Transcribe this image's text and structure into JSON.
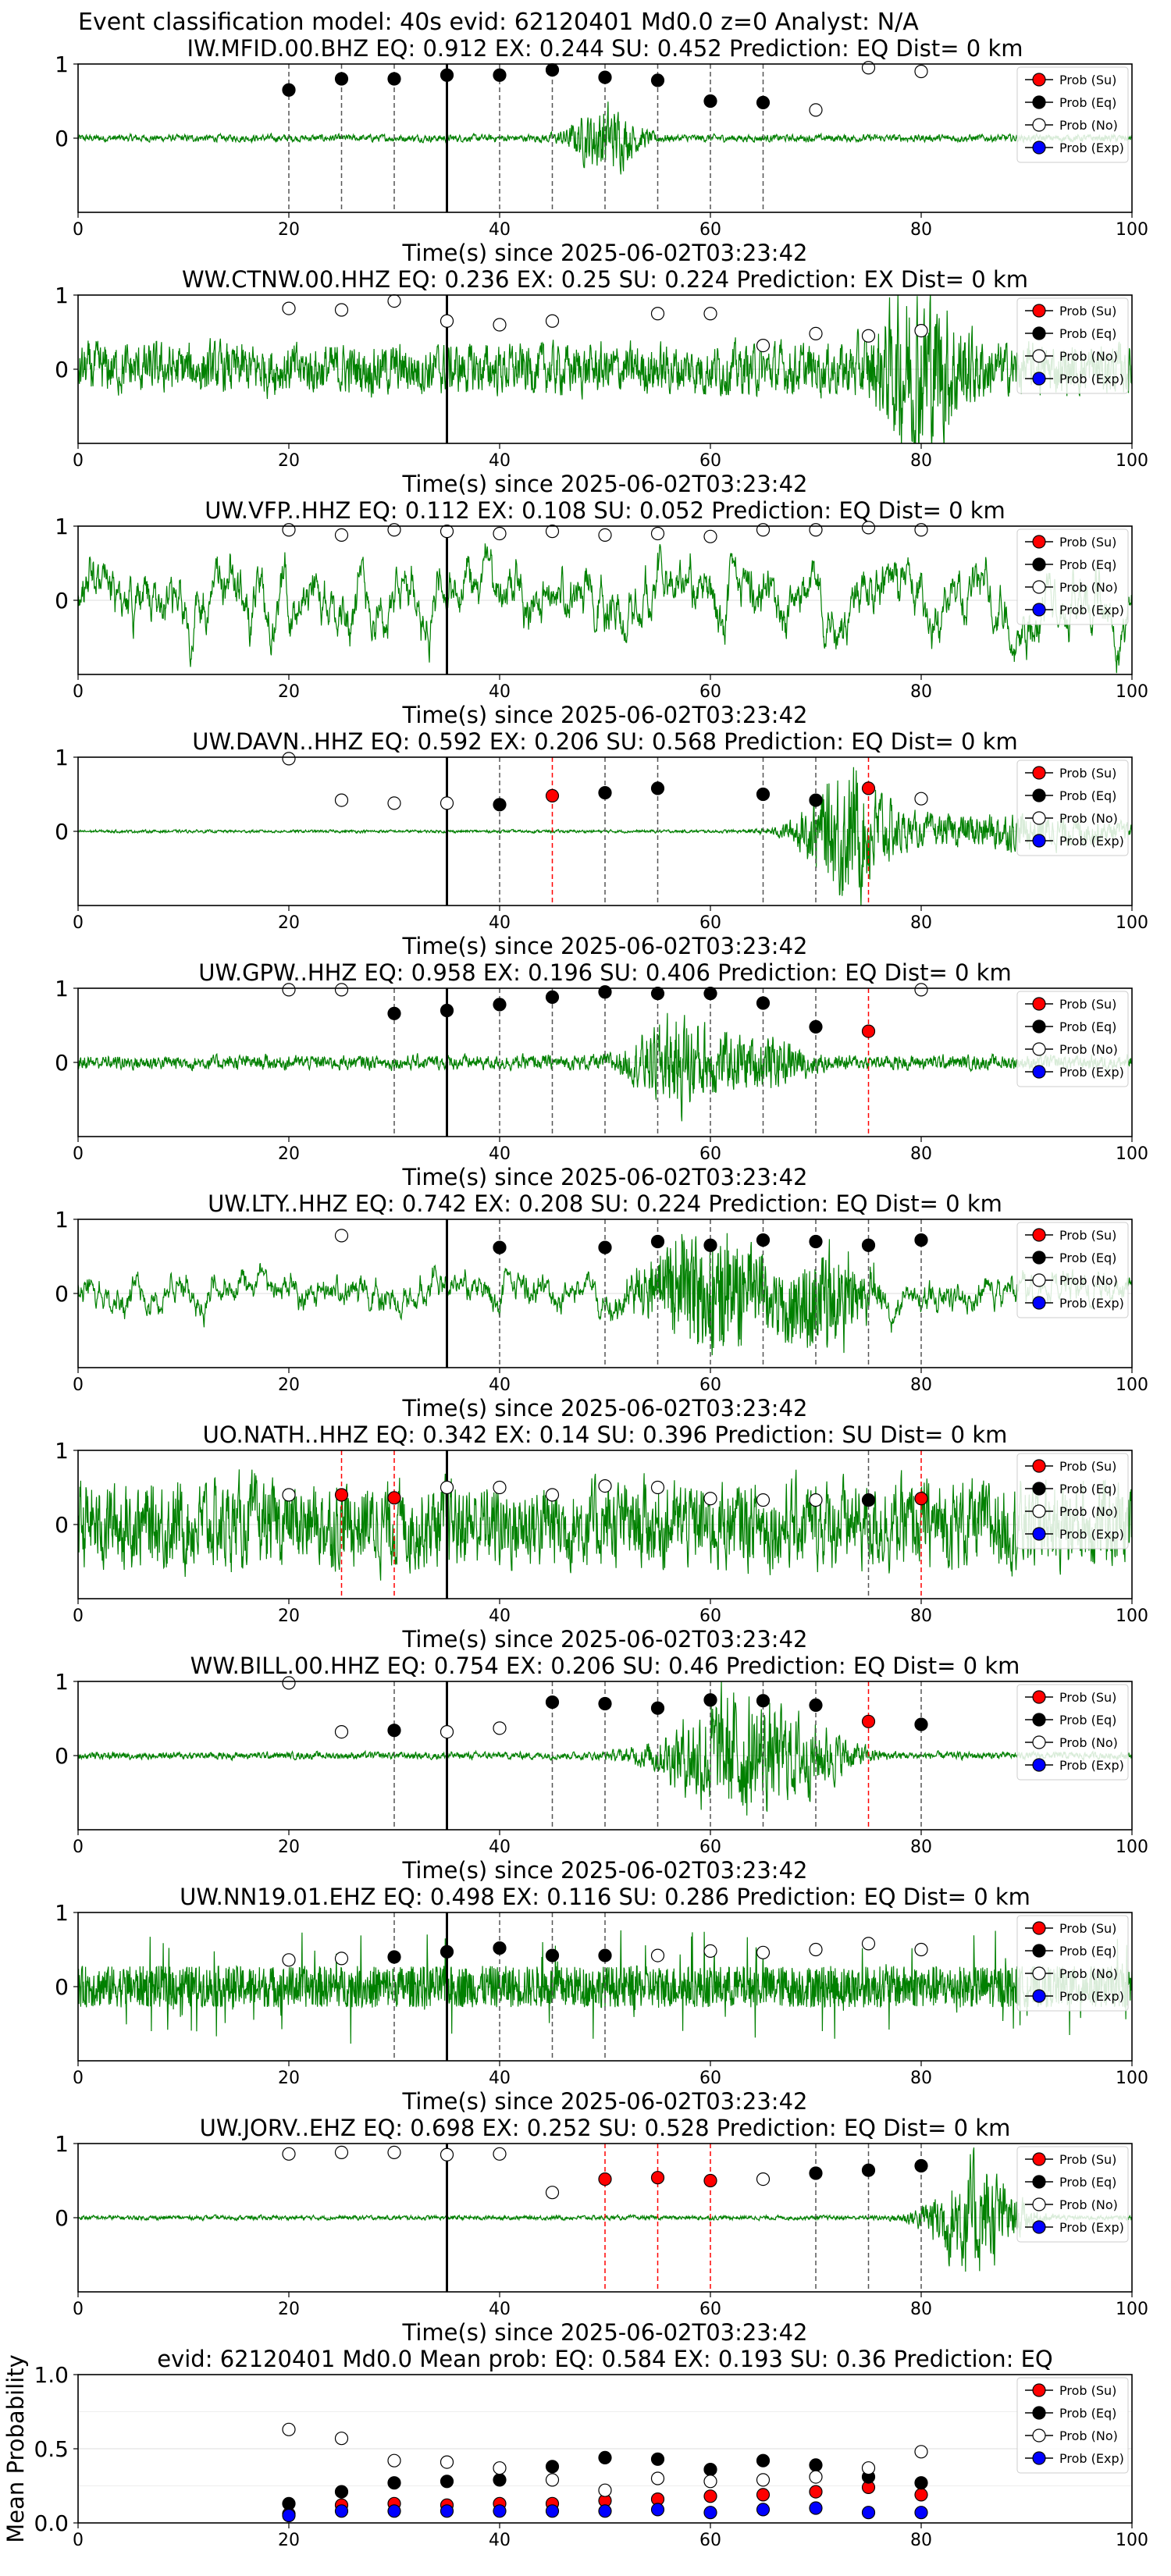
{
  "figure": {
    "suptitle": "Event classification model: 40s evid: 62120401 Md0.0 z=0 Analyst: N/A"
  },
  "legend_labels": [
    "Prob (Su)",
    "Prob (Eq)",
    "Prob (No)",
    "Prob (Exp)"
  ],
  "colors": {
    "trace": "#008000",
    "su": "#ff0000",
    "eq": "#000000",
    "no": "#ffffff",
    "exp": "#0000ff",
    "vline": "#555555",
    "vline_su": "#ff0000"
  },
  "chart_data": [
    {
      "type": "line",
      "station": "IW.MFID.00.BHZ",
      "title": "IW.MFID.00.BHZ   EQ: 0.912   EX: 0.244   SU: 0.452   Prediction: EQ    Dist= 0 km",
      "xlabel": "Time(s) since 2025-06-02T03:23:42",
      "xlim": [
        0,
        100
      ],
      "ylim": [
        -1,
        1
      ],
      "xticks": [
        "0",
        "20",
        "40",
        "60",
        "80",
        "100"
      ],
      "yticks": [
        "1",
        "0"
      ],
      "arrival_line": 35,
      "noise_profile": {
        "base": 0.05,
        "bursts": [
          [
            50,
            3,
            0.45
          ]
        ]
      },
      "points": [
        [
          20,
          0.65,
          "eq"
        ],
        [
          25,
          0.8,
          "eq"
        ],
        [
          30,
          0.8,
          "eq"
        ],
        [
          35,
          0.85,
          "eq"
        ],
        [
          40,
          0.85,
          "eq"
        ],
        [
          45,
          0.92,
          "eq"
        ],
        [
          50,
          0.82,
          "eq"
        ],
        [
          55,
          0.78,
          "eq"
        ],
        [
          60,
          0.5,
          "eq"
        ],
        [
          65,
          0.48,
          "eq"
        ],
        [
          70,
          0.38,
          "no"
        ],
        [
          75,
          0.95,
          "no"
        ],
        [
          80,
          0.9,
          "no"
        ]
      ]
    },
    {
      "type": "line",
      "station": "WW.CTNW.00.HHZ",
      "title": "WW.CTNW.00.HHZ   EQ: 0.236   EX: 0.25   SU: 0.224   Prediction: EX    Dist= 0 km",
      "xlabel": "Time(s) since 2025-06-02T03:23:42",
      "xlim": [
        0,
        100
      ],
      "ylim": [
        -1,
        1
      ],
      "xticks": [
        "0",
        "20",
        "40",
        "60",
        "80",
        "100"
      ],
      "yticks": [
        "1",
        "0"
      ],
      "arrival_line": 35,
      "noise_profile": {
        "base": 0.35,
        "bursts": [
          [
            80,
            4,
            0.9
          ]
        ]
      },
      "points": [
        [
          20,
          0.82,
          "no"
        ],
        [
          25,
          0.8,
          "no"
        ],
        [
          30,
          0.92,
          "no"
        ],
        [
          35,
          0.65,
          "no"
        ],
        [
          40,
          0.6,
          "no"
        ],
        [
          45,
          0.65,
          "no"
        ],
        [
          55,
          0.75,
          "no"
        ],
        [
          60,
          0.75,
          "no"
        ],
        [
          65,
          0.32,
          "no"
        ],
        [
          70,
          0.48,
          "no"
        ],
        [
          75,
          0.45,
          "no"
        ],
        [
          80,
          0.52,
          "no"
        ]
      ]
    },
    {
      "type": "line",
      "station": "UW.VFP..HHZ",
      "title": "UW.VFP..HHZ   EQ: 0.112   EX: 0.108   SU: 0.052   Prediction: EQ    Dist= 0 km",
      "xlabel": "Time(s) since 2025-06-02T03:23:42",
      "xlim": [
        0,
        100
      ],
      "ylim": [
        -1,
        1
      ],
      "xticks": [
        "0",
        "20",
        "40",
        "60",
        "80",
        "100"
      ],
      "yticks": [
        "1",
        "0"
      ],
      "arrival_line": 35,
      "noise_profile": {
        "base": 0.5,
        "smooth": true,
        "bursts": []
      },
      "points": [
        [
          20,
          0.95,
          "no"
        ],
        [
          25,
          0.88,
          "no"
        ],
        [
          30,
          0.95,
          "no"
        ],
        [
          35,
          0.93,
          "no"
        ],
        [
          40,
          0.9,
          "no"
        ],
        [
          45,
          0.93,
          "no"
        ],
        [
          50,
          0.88,
          "no"
        ],
        [
          55,
          0.9,
          "no"
        ],
        [
          60,
          0.86,
          "no"
        ],
        [
          65,
          0.95,
          "no"
        ],
        [
          70,
          0.95,
          "no"
        ],
        [
          75,
          0.98,
          "no"
        ],
        [
          80,
          0.95,
          "no"
        ]
      ]
    },
    {
      "type": "line",
      "station": "UW.DAVN..HHZ",
      "title": "UW.DAVN..HHZ   EQ: 0.592   EX: 0.206   SU: 0.568   Prediction: EQ    Dist= 0 km",
      "xlabel": "Time(s) since 2025-06-02T03:23:42",
      "xlim": [
        0,
        100
      ],
      "ylim": [
        -1,
        1
      ],
      "xticks": [
        "0",
        "20",
        "40",
        "60",
        "80",
        "100"
      ],
      "yticks": [
        "1",
        "0"
      ],
      "arrival_line": 35,
      "noise_profile": {
        "base": 0.02,
        "bursts": [
          [
            73,
            4,
            0.85
          ],
          [
            88,
            12,
            0.25
          ]
        ]
      },
      "points": [
        [
          20,
          0.98,
          "no"
        ],
        [
          25,
          0.42,
          "no"
        ],
        [
          30,
          0.38,
          "no"
        ],
        [
          35,
          0.38,
          "no"
        ],
        [
          40,
          0.36,
          "eq"
        ],
        [
          45,
          0.48,
          "su"
        ],
        [
          50,
          0.52,
          "eq"
        ],
        [
          55,
          0.58,
          "eq"
        ],
        [
          65,
          0.5,
          "eq"
        ],
        [
          70,
          0.42,
          "eq"
        ],
        [
          75,
          0.58,
          "su"
        ],
        [
          80,
          0.44,
          "no"
        ]
      ]
    },
    {
      "type": "line",
      "station": "UW.GPW..HHZ",
      "title": "UW.GPW..HHZ   EQ: 0.958   EX: 0.196   SU: 0.406   Prediction: EQ    Dist= 0 km",
      "xlabel": "Time(s) since 2025-06-02T03:23:42",
      "xlim": [
        0,
        100
      ],
      "ylim": [
        -1,
        1
      ],
      "xticks": [
        "0",
        "20",
        "40",
        "60",
        "80",
        "100"
      ],
      "yticks": [
        "1",
        "0"
      ],
      "arrival_line": 35,
      "noise_profile": {
        "base": 0.1,
        "bursts": [
          [
            57,
            4,
            0.6
          ],
          [
            65,
            4,
            0.3
          ]
        ]
      },
      "points": [
        [
          20,
          0.98,
          "no"
        ],
        [
          25,
          0.98,
          "no"
        ],
        [
          30,
          0.66,
          "eq"
        ],
        [
          35,
          0.7,
          "eq"
        ],
        [
          40,
          0.78,
          "eq"
        ],
        [
          45,
          0.88,
          "eq"
        ],
        [
          50,
          0.95,
          "eq"
        ],
        [
          55,
          0.93,
          "eq"
        ],
        [
          60,
          0.93,
          "eq"
        ],
        [
          65,
          0.8,
          "eq"
        ],
        [
          70,
          0.48,
          "eq"
        ],
        [
          75,
          0.42,
          "su"
        ],
        [
          80,
          0.98,
          "no"
        ]
      ]
    },
    {
      "type": "line",
      "station": "UW.LTY..HHZ",
      "title": "UW.LTY..HHZ   EQ: 0.742   EX: 0.208   SU: 0.224   Prediction: EQ    Dist= 0 km",
      "xlabel": "Time(s) since 2025-06-02T03:23:42",
      "xlim": [
        0,
        100
      ],
      "ylim": [
        -1,
        1
      ],
      "xticks": [
        "0",
        "20",
        "40",
        "60",
        "80",
        "100"
      ],
      "yticks": [
        "1",
        "0"
      ],
      "arrival_line": 35,
      "noise_profile": {
        "base": 0.25,
        "smooth": true,
        "bursts": [
          [
            60,
            6,
            0.7
          ],
          [
            71,
            4,
            0.6
          ]
        ]
      },
      "points": [
        [
          25,
          0.78,
          "no"
        ],
        [
          40,
          0.62,
          "eq"
        ],
        [
          50,
          0.62,
          "eq"
        ],
        [
          55,
          0.7,
          "eq"
        ],
        [
          60,
          0.65,
          "eq"
        ],
        [
          65,
          0.72,
          "eq"
        ],
        [
          70,
          0.7,
          "eq"
        ],
        [
          75,
          0.65,
          "eq"
        ],
        [
          80,
          0.72,
          "eq"
        ]
      ]
    },
    {
      "type": "line",
      "station": "UO.NATH..HHZ",
      "title": "UO.NATH..HHZ   EQ: 0.342   EX: 0.14   SU: 0.396   Prediction: SU    Dist= 0 km",
      "xlabel": "Time(s) since 2025-06-02T03:23:42",
      "xlim": [
        0,
        100
      ],
      "ylim": [
        -1,
        1
      ],
      "xticks": [
        "0",
        "20",
        "40",
        "60",
        "80",
        "100"
      ],
      "yticks": [
        "1",
        "0"
      ],
      "arrival_line": 35,
      "noise_profile": {
        "base": 0.6,
        "bursts": []
      },
      "points": [
        [
          20,
          0.4,
          "no"
        ],
        [
          25,
          0.4,
          "su"
        ],
        [
          30,
          0.36,
          "su"
        ],
        [
          35,
          0.5,
          "no"
        ],
        [
          40,
          0.5,
          "no"
        ],
        [
          45,
          0.4,
          "no"
        ],
        [
          50,
          0.52,
          "no"
        ],
        [
          55,
          0.5,
          "no"
        ],
        [
          60,
          0.35,
          "no"
        ],
        [
          65,
          0.33,
          "no"
        ],
        [
          70,
          0.33,
          "no"
        ],
        [
          75,
          0.33,
          "eq"
        ],
        [
          80,
          0.35,
          "su"
        ]
      ]
    },
    {
      "type": "line",
      "station": "WW.BILL.00.HHZ",
      "title": "WW.BILL.00.HHZ   EQ: 0.754   EX: 0.206   SU: 0.46   Prediction: EQ    Dist= 0 km",
      "xlabel": "Time(s) since 2025-06-02T03:23:42",
      "xlim": [
        0,
        100
      ],
      "ylim": [
        -1,
        1
      ],
      "xticks": [
        "0",
        "20",
        "40",
        "60",
        "80",
        "100"
      ],
      "yticks": [
        "1",
        "0"
      ],
      "arrival_line": 35,
      "noise_profile": {
        "base": 0.05,
        "bursts": [
          [
            62,
            6,
            0.85
          ],
          [
            70,
            4,
            0.3
          ]
        ]
      },
      "points": [
        [
          20,
          0.98,
          "no"
        ],
        [
          25,
          0.32,
          "no"
        ],
        [
          30,
          0.34,
          "eq"
        ],
        [
          35,
          0.32,
          "no"
        ],
        [
          40,
          0.37,
          "no"
        ],
        [
          45,
          0.72,
          "eq"
        ],
        [
          50,
          0.7,
          "eq"
        ],
        [
          55,
          0.64,
          "eq"
        ],
        [
          60,
          0.75,
          "eq"
        ],
        [
          65,
          0.74,
          "eq"
        ],
        [
          70,
          0.68,
          "eq"
        ],
        [
          75,
          0.46,
          "su"
        ],
        [
          80,
          0.42,
          "eq"
        ]
      ]
    },
    {
      "type": "line",
      "station": "UW.NN19.01.EHZ",
      "title": "UW.NN19.01.EHZ   EQ: 0.498   EX: 0.116   SU: 0.286   Prediction: EQ    Dist= 0 km",
      "xlabel": "Time(s) since 2025-06-02T03:23:42",
      "xlim": [
        0,
        100
      ],
      "ylim": [
        -1,
        1
      ],
      "xticks": [
        "0",
        "20",
        "40",
        "60",
        "80",
        "100"
      ],
      "yticks": [
        "1",
        "0"
      ],
      "arrival_line": 35,
      "noise_profile": {
        "base": 0.35,
        "spiky": true,
        "bursts": []
      },
      "points": [
        [
          20,
          0.36,
          "no"
        ],
        [
          25,
          0.38,
          "no"
        ],
        [
          30,
          0.4,
          "eq"
        ],
        [
          35,
          0.47,
          "eq"
        ],
        [
          40,
          0.52,
          "eq"
        ],
        [
          45,
          0.42,
          "eq"
        ],
        [
          50,
          0.42,
          "eq"
        ],
        [
          55,
          0.42,
          "no"
        ],
        [
          60,
          0.48,
          "no"
        ],
        [
          65,
          0.46,
          "no"
        ],
        [
          70,
          0.5,
          "no"
        ],
        [
          75,
          0.58,
          "no"
        ],
        [
          80,
          0.5,
          "no"
        ]
      ]
    },
    {
      "type": "line",
      "station": "UW.JORV..EHZ",
      "title": "UW.JORV..EHZ   EQ: 0.698   EX: 0.252   SU: 0.528   Prediction: EQ    Dist= 0 km",
      "xlabel": "Time(s) since 2025-06-02T03:23:42",
      "xlim": [
        0,
        100
      ],
      "ylim": [
        -1,
        1
      ],
      "xticks": [
        "0",
        "20",
        "40",
        "60",
        "80",
        "100"
      ],
      "yticks": [
        "1",
        "0"
      ],
      "arrival_line": 35,
      "noise_profile": {
        "base": 0.03,
        "bursts": [
          [
            85,
            4,
            0.8
          ]
        ]
      },
      "points": [
        [
          20,
          0.86,
          "no"
        ],
        [
          25,
          0.88,
          "no"
        ],
        [
          30,
          0.88,
          "no"
        ],
        [
          35,
          0.85,
          "no"
        ],
        [
          40,
          0.86,
          "no"
        ],
        [
          45,
          0.34,
          "no"
        ],
        [
          50,
          0.52,
          "su"
        ],
        [
          55,
          0.54,
          "su"
        ],
        [
          60,
          0.5,
          "su"
        ],
        [
          65,
          0.52,
          "no"
        ],
        [
          70,
          0.6,
          "eq"
        ],
        [
          75,
          0.64,
          "eq"
        ],
        [
          80,
          0.7,
          "eq"
        ]
      ]
    },
    {
      "type": "scatter",
      "title": "evid: 62120401   Md0.0    Mean prob:    EQ: 0.584   EX: 0.193   SU: 0.36    Prediction: EQ",
      "ylabel": "Mean Probability",
      "xlim": [
        0,
        100
      ],
      "ylim": [
        0,
        1
      ],
      "xticks": [
        "0",
        "20",
        "40",
        "60",
        "80",
        "100"
      ],
      "yticks": [
        "0.0",
        "0.5",
        "1.0"
      ],
      "x": [
        20,
        25,
        30,
        35,
        40,
        45,
        50,
        55,
        60,
        65,
        70,
        75,
        80
      ],
      "series": [
        {
          "name": "Prob (Su)",
          "values": [
            0.06,
            0.12,
            0.13,
            0.12,
            0.13,
            0.13,
            0.15,
            0.16,
            0.18,
            0.19,
            0.21,
            0.24,
            0.19
          ]
        },
        {
          "name": "Prob (Eq)",
          "values": [
            0.13,
            0.21,
            0.27,
            0.28,
            0.29,
            0.38,
            0.44,
            0.43,
            0.36,
            0.42,
            0.39,
            0.31,
            0.27
          ]
        },
        {
          "name": "Prob (No)",
          "values": [
            0.63,
            0.57,
            0.42,
            0.41,
            0.37,
            0.29,
            0.22,
            0.3,
            0.28,
            0.29,
            0.31,
            0.37,
            0.48
          ]
        },
        {
          "name": "Prob (Exp)",
          "values": [
            0.05,
            0.08,
            0.08,
            0.08,
            0.08,
            0.08,
            0.08,
            0.09,
            0.07,
            0.09,
            0.1,
            0.07,
            0.07
          ]
        }
      ]
    }
  ]
}
